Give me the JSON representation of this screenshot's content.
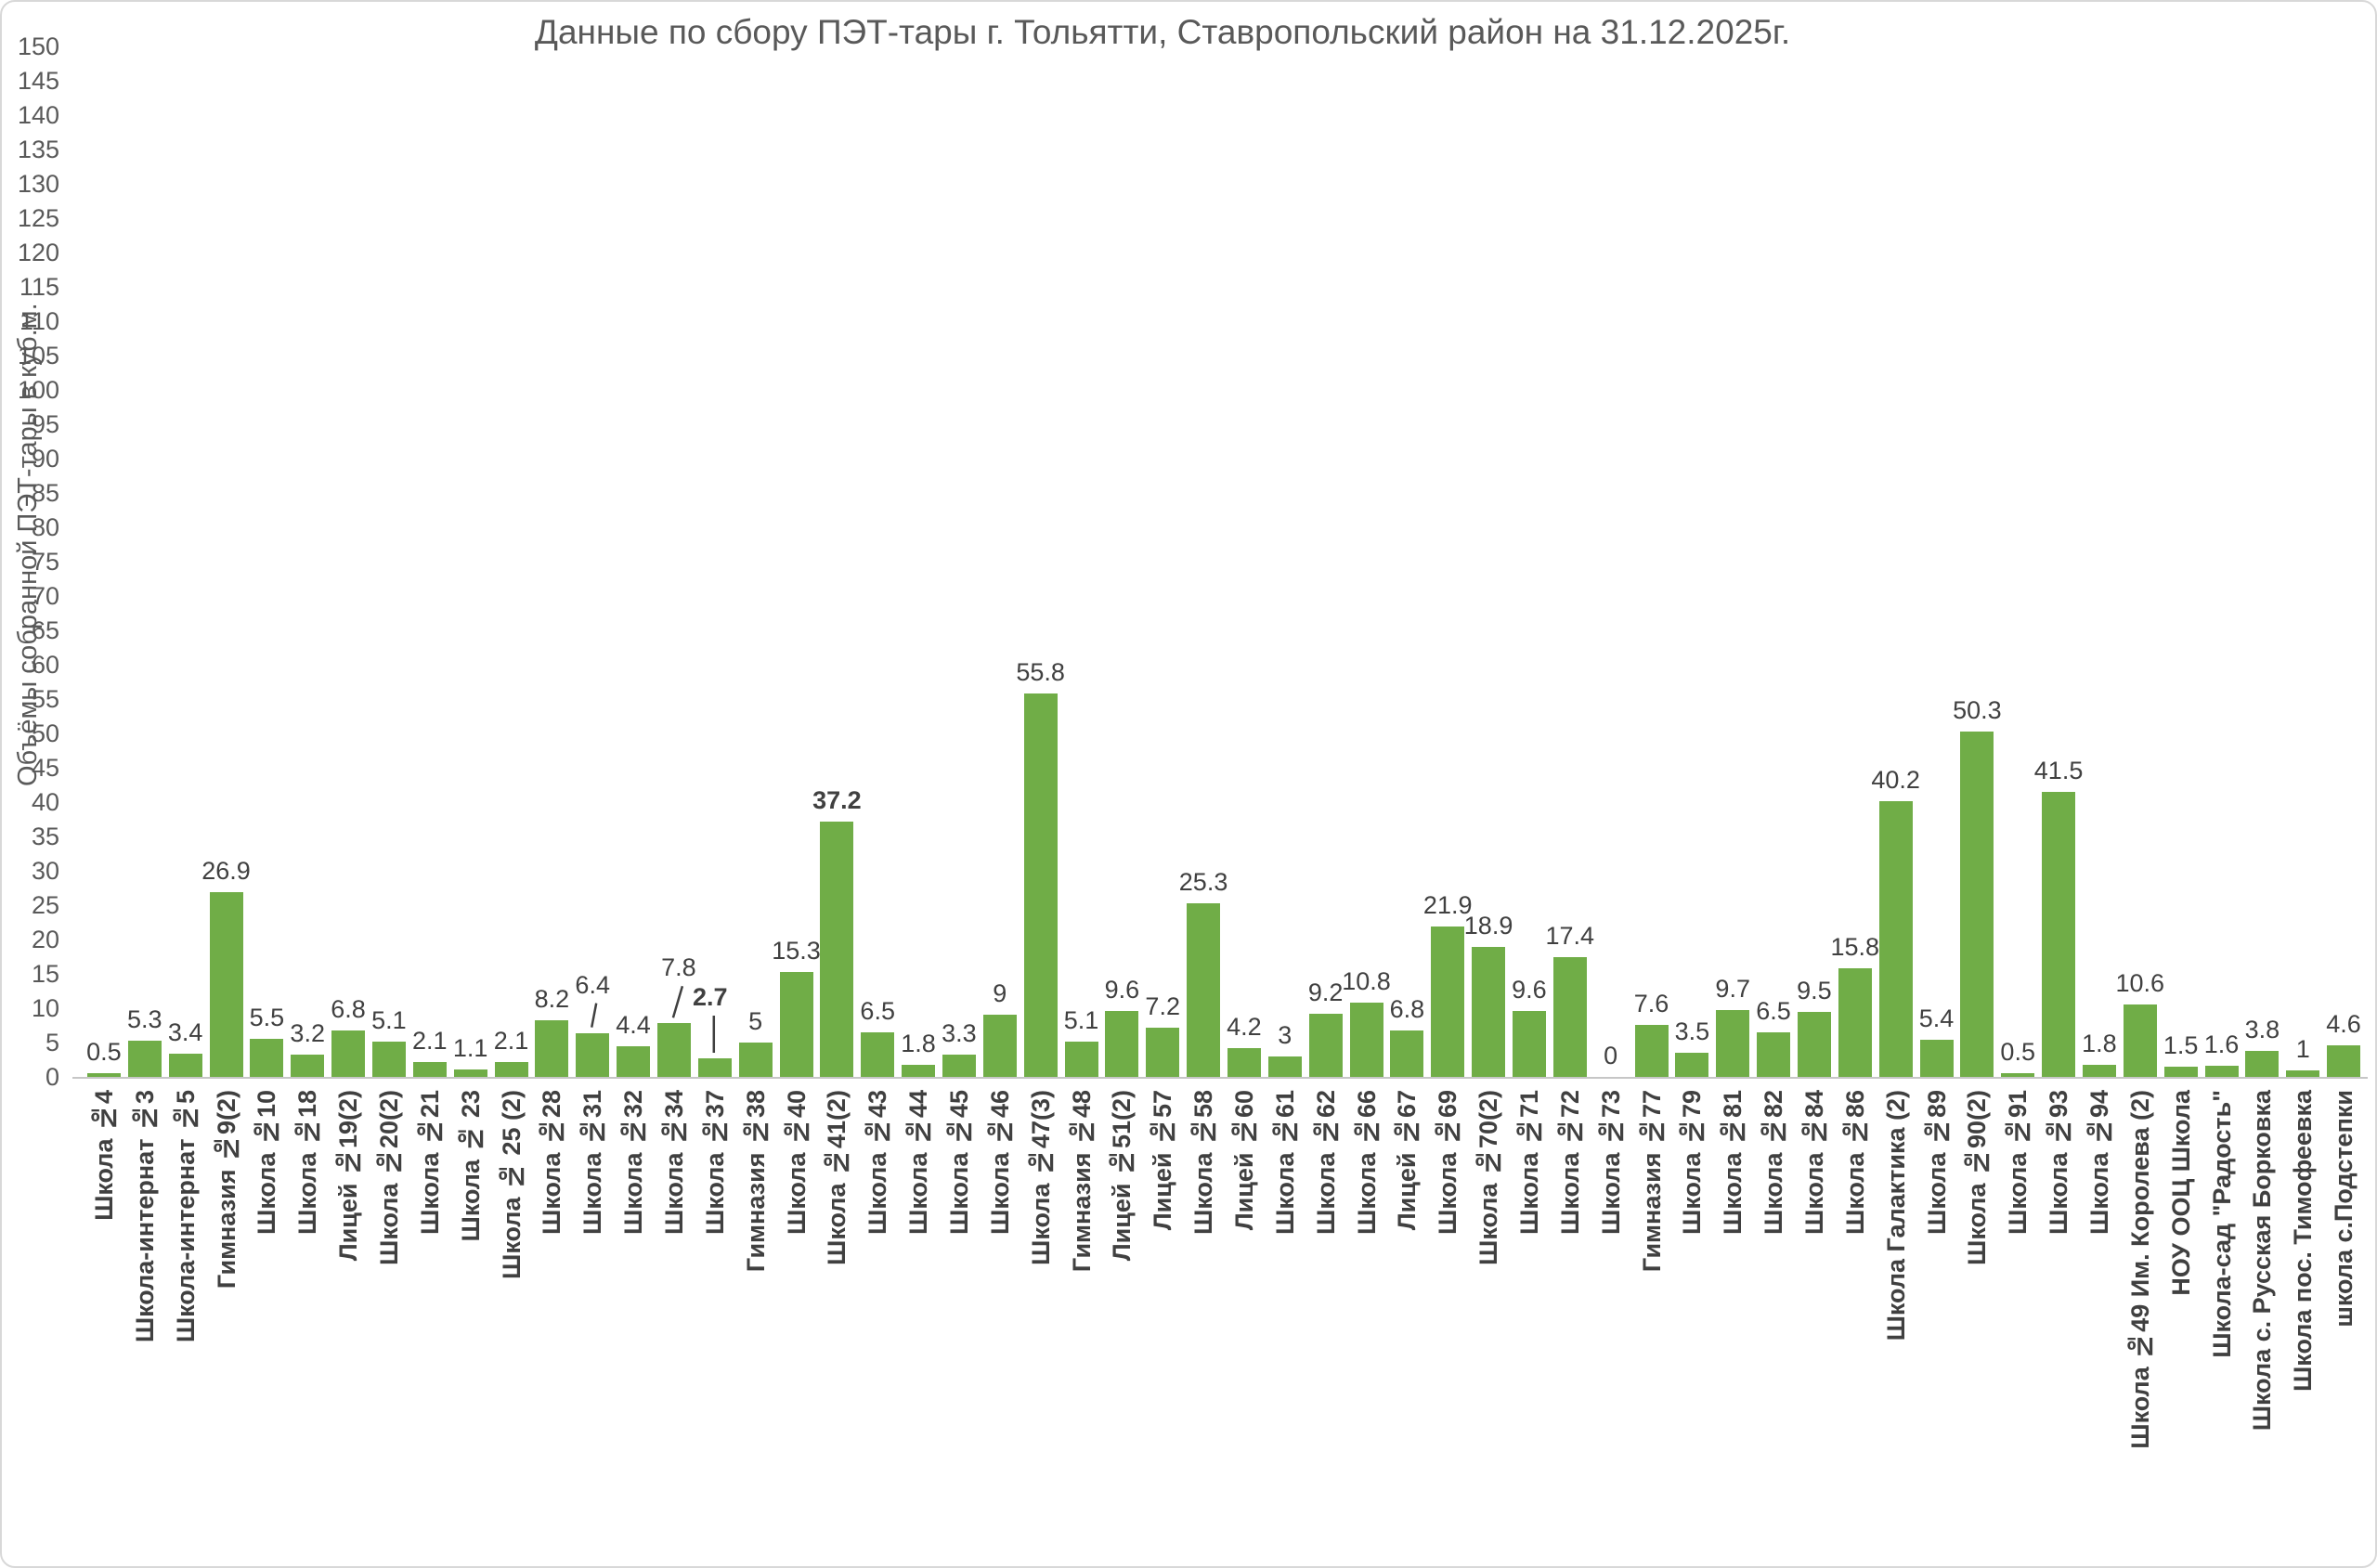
{
  "title": "Данные по сбору ПЭТ-тары г. Тольятти, Ставропольский район на 31.12.2025г.",
  "colors": {
    "bar": "#70AD47",
    "axis_text": "#595959",
    "data_label_text": "#404040",
    "category_text": "#404040",
    "axis_line": "#C6C6C6",
    "border": "#D8D8D8",
    "background": "#FFFFFF"
  },
  "chart_data": {
    "type": "bar",
    "title": "Данные по сбору ПЭТ-тары г. Тольятти, Ставропольский район на 31.12.2025г.",
    "xlabel": "",
    "ylabel": "Объёмы собранной ПЭТ-тары в куб.м.",
    "ylim": [
      0,
      150
    ],
    "ytick_step": 5,
    "grid": false,
    "legend": false,
    "data_labels": true,
    "categories": [
      "Школа №4",
      "Школа-интернат №3",
      "Школа-интернат №5",
      "Гимназия №9(2)",
      "Школа №10",
      "Школа №18",
      "Лицей №19(2)",
      "Школа №20(2)",
      "Школа №21",
      "Школа № 23",
      "Школа № 25 (2)",
      "Школа №28",
      "Школа №31",
      "Школа №32",
      "Школа №34",
      "Школа №37",
      "Гимназия №38",
      "Школа №40",
      "Школа №41(2)",
      "Школа №43",
      "Школа №44",
      "Школа №45",
      "Школа №46",
      "Школа №47(3)",
      "Гимназия №48",
      "Лицей №51(2)",
      "Лицей №57",
      "Школа №58",
      "Лицей №60",
      "Школа №61",
      "Школа №62",
      "Школа №66",
      "Лицей №67",
      "Школа №69",
      "Школа №70(2)",
      "Школа №71",
      "Школа №72",
      "Школа №73",
      "Гимназия №77",
      "Школа №79",
      "Школа №81",
      "Школа №82",
      "Школа №84",
      "Школа №86",
      "Школа Галактика (2)",
      "Школа №89",
      "Школа №90(2)",
      "Школа №91",
      "Школа №93",
      "Школа №94",
      "Школа №49 Им. Королева (2)",
      "НОУ ООЦ Школа",
      "Школа-сад \"Радость\"",
      "Школа с. Русская Борковка",
      "Школа пос. Тимофеевка",
      "школа с.Подстепки"
    ],
    "values": [
      0.5,
      5.3,
      3.4,
      26.9,
      5.5,
      3.2,
      6.8,
      5.1,
      2.1,
      1.1,
      2.1,
      8.2,
      6.4,
      4.4,
      7.8,
      2.7,
      5,
      15.3,
      37.2,
      6.5,
      1.8,
      3.3,
      9,
      55.8,
      5.1,
      9.6,
      7.2,
      25.3,
      4.2,
      3,
      9.2,
      10.8,
      6.8,
      21.9,
      18.9,
      9.6,
      17.4,
      0,
      7.6,
      3.5,
      9.7,
      6.5,
      9.5,
      15.8,
      40.2,
      5.4,
      50.3,
      0.5,
      41.5,
      1.8,
      10.6,
      1.5,
      1.6,
      3.8,
      1,
      4.6
    ],
    "bold_value_labels": [
      "Школа №37",
      "Школа №41(2)"
    ],
    "callouts": [
      {
        "category": "Школа №31",
        "lift": 35,
        "dx": 0
      },
      {
        "category": "Школа №34",
        "lift": 43,
        "dx": 5
      },
      {
        "category": "Школа №37",
        "lift": 49,
        "dx": -5
      }
    ]
  }
}
